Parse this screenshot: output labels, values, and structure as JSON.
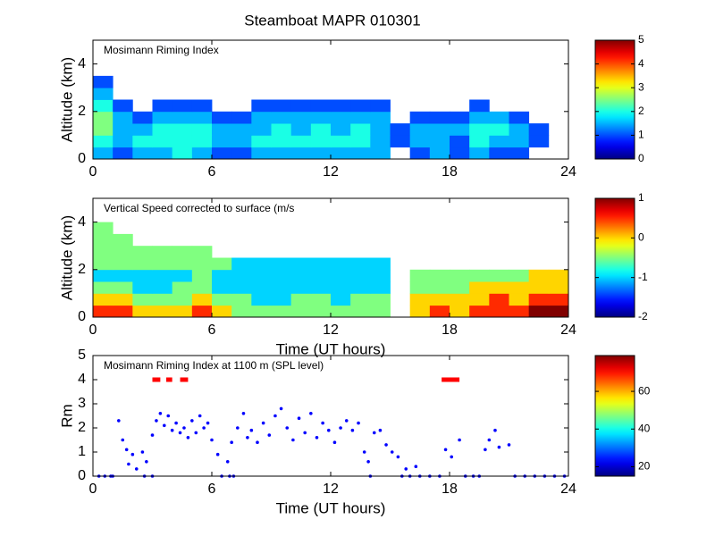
{
  "chart_data": [
    {
      "type": "heatmap",
      "title": "Steamboat MAPR 010301",
      "annotation": "Mosimann Riming Index",
      "ylabel": "Altitude (km)",
      "xbins": [
        0,
        1,
        2,
        3,
        4,
        5,
        6,
        7,
        8,
        9,
        10,
        11,
        12,
        13,
        14,
        15,
        16,
        17,
        18,
        19,
        20,
        21,
        22,
        23,
        24
      ],
      "ybins": [
        0,
        0.5,
        1,
        1.5,
        2,
        2.5,
        3,
        3.5,
        4
      ],
      "values": [
        [
          1.5,
          1,
          1.5,
          1.5,
          2,
          1.5,
          1,
          1,
          1.5,
          1.5,
          1.5,
          1.5,
          1.5,
          1.5,
          1.5,
          null,
          1,
          1.5,
          1,
          1.5,
          1,
          1,
          null,
          null
        ],
        [
          2,
          1.5,
          2,
          2,
          2,
          2,
          1.5,
          1.5,
          2,
          2,
          2,
          2,
          2,
          2,
          1.5,
          1,
          1.5,
          1.5,
          1,
          2,
          1.5,
          1.5,
          1,
          null
        ],
        [
          2.5,
          1.5,
          1.5,
          2,
          2,
          2,
          1.5,
          1.5,
          1.5,
          2,
          1.5,
          2,
          1.5,
          2,
          1.5,
          1,
          1.5,
          1.5,
          1.5,
          2,
          2,
          1.5,
          1,
          null
        ],
        [
          2.5,
          1.5,
          1,
          1.5,
          1.5,
          1.5,
          1,
          1,
          1.5,
          1.5,
          1.5,
          1.5,
          1.5,
          1.5,
          1.5,
          null,
          1,
          1,
          1,
          1.5,
          1.5,
          1,
          null,
          null
        ],
        [
          2,
          1,
          null,
          1,
          1,
          1,
          null,
          null,
          1,
          1,
          1,
          1,
          1,
          1,
          1,
          null,
          null,
          null,
          null,
          1,
          null,
          null,
          null,
          null
        ],
        [
          1.5,
          null,
          null,
          null,
          null,
          null,
          null,
          null,
          null,
          null,
          null,
          null,
          null,
          null,
          null,
          null,
          null,
          null,
          null,
          null,
          null,
          null,
          null,
          null
        ],
        [
          1,
          null,
          null,
          null,
          null,
          null,
          null,
          null,
          null,
          null,
          null,
          null,
          null,
          null,
          null,
          null,
          null,
          null,
          null,
          null,
          null,
          null,
          null,
          null
        ],
        [
          null,
          null,
          null,
          null,
          null,
          null,
          null,
          null,
          null,
          null,
          null,
          null,
          null,
          null,
          null,
          null,
          null,
          null,
          null,
          null,
          null,
          null,
          null,
          null
        ]
      ],
      "colormap": "jet",
      "clim": [
        0,
        5
      ],
      "cticks": [
        0,
        1,
        2,
        3,
        4,
        5
      ],
      "xlim": [
        0,
        24
      ],
      "xticks": [
        0,
        6,
        12,
        18,
        24
      ],
      "ylim": [
        0,
        5
      ],
      "yticks": [
        0,
        2,
        4
      ]
    },
    {
      "type": "heatmap",
      "annotation": "Vertical Speed corrected to surface (m/s",
      "ylabel": "Altitude (km)",
      "xlabel": "Time (UT hours)",
      "xbins": [
        0,
        1,
        2,
        3,
        4,
        5,
        6,
        7,
        8,
        9,
        10,
        11,
        12,
        13,
        14,
        15,
        16,
        17,
        18,
        19,
        20,
        21,
        22,
        23,
        24
      ],
      "ybins": [
        0,
        0.5,
        1,
        1.5,
        2,
        2.5,
        3,
        3.5,
        4
      ],
      "values": [
        [
          0.5,
          0.5,
          0,
          0,
          0,
          0.5,
          0,
          -0.5,
          -0.5,
          -0.5,
          -0.5,
          -0.5,
          -0.5,
          -0.5,
          -0.5,
          null,
          0,
          0.5,
          0,
          0.5,
          0.5,
          0.5,
          1,
          1
        ],
        [
          0,
          0,
          -0.5,
          -0.5,
          -0.5,
          0,
          -0.5,
          -0.5,
          -1,
          -1,
          -0.5,
          -0.5,
          -1,
          -0.5,
          -0.5,
          null,
          0,
          0,
          0,
          0,
          0.5,
          0,
          0.5,
          0.5
        ],
        [
          -0.5,
          -0.5,
          -1,
          -1,
          -0.5,
          -0.5,
          -1,
          -1,
          -1,
          -1,
          -1,
          -1,
          -1,
          -1,
          -1,
          null,
          -0.5,
          -0.5,
          -0.5,
          0,
          0,
          0,
          0,
          0
        ],
        [
          -1,
          -1,
          -1,
          -1,
          -1,
          -0.5,
          -1,
          -1,
          -1,
          -1,
          -1,
          -1,
          -1,
          -1,
          -1,
          null,
          -0.5,
          -0.5,
          -0.5,
          -0.5,
          -0.5,
          -0.5,
          0,
          0
        ],
        [
          -0.5,
          -0.5,
          -0.5,
          -0.5,
          -0.5,
          -0.5,
          -0.5,
          -1,
          -1,
          -1,
          -1,
          -1,
          -1,
          -1,
          -1,
          null,
          null,
          null,
          null,
          null,
          null,
          null,
          null,
          null
        ],
        [
          -0.5,
          -0.5,
          -0.5,
          -0.5,
          -0.5,
          -0.5,
          null,
          null,
          null,
          null,
          null,
          null,
          null,
          null,
          null,
          null,
          null,
          null,
          null,
          null,
          null,
          null,
          null,
          null
        ],
        [
          -0.5,
          -0.5,
          null,
          null,
          null,
          null,
          null,
          null,
          null,
          null,
          null,
          null,
          null,
          null,
          null,
          null,
          null,
          null,
          null,
          null,
          null,
          null,
          null,
          null
        ],
        [
          -0.5,
          null,
          null,
          null,
          null,
          null,
          null,
          null,
          null,
          null,
          null,
          null,
          null,
          null,
          null,
          null,
          null,
          null,
          null,
          null,
          null,
          null,
          null,
          null
        ]
      ],
      "colormap": "jet",
      "clim": [
        -2,
        1
      ],
      "cticks": [
        -2,
        -1,
        0,
        1
      ],
      "xlim": [
        0,
        24
      ],
      "xticks": [
        0,
        6,
        12,
        18,
        24
      ],
      "ylim": [
        0,
        5
      ],
      "yticks": [
        0,
        2,
        4
      ]
    },
    {
      "type": "scatter",
      "annotation": "Mosimann Riming Index at 1100 m (SPL level)",
      "ylabel": "Rm",
      "xlabel": "Time (UT hours)",
      "x": [
        1.3,
        1.5,
        1.7,
        1.8,
        2.0,
        2.2,
        2.5,
        2.7,
        3.0,
        3.2,
        3.4,
        3.6,
        3.8,
        4.0,
        4.2,
        4.4,
        4.6,
        4.8,
        5.0,
        5.2,
        5.4,
        5.6,
        5.8,
        6.0,
        6.3,
        6.8,
        7.0,
        7.3,
        7.6,
        7.8,
        8.0,
        8.3,
        8.6,
        8.9,
        9.2,
        9.5,
        9.8,
        10.1,
        10.4,
        10.7,
        11.0,
        11.3,
        11.6,
        11.9,
        12.2,
        12.5,
        12.8,
        13.1,
        13.4,
        13.7,
        13.9,
        14.2,
        14.5,
        14.8,
        15.1,
        15.4,
        15.8,
        16.3,
        17.8,
        18.1,
        18.5,
        19.8,
        20.0,
        20.3,
        20.5,
        21.0,
        0.3,
        0.6,
        0.9,
        1.0,
        2.6,
        3.0,
        6.5,
        6.9,
        7.1,
        14.0,
        15.6,
        16.0,
        16.5,
        17.0,
        17.5,
        18.8,
        19.2,
        19.5,
        21.3,
        21.8,
        22.3,
        22.8,
        23.3,
        23.8
      ],
      "y": [
        2.3,
        1.5,
        1.1,
        0.5,
        0.9,
        0.3,
        1.0,
        0.6,
        1.7,
        2.3,
        2.6,
        2.1,
        2.5,
        1.9,
        2.2,
        1.8,
        2.0,
        1.6,
        2.3,
        1.8,
        2.5,
        2.0,
        2.2,
        1.5,
        0.9,
        0.6,
        1.4,
        2.0,
        2.6,
        1.6,
        1.9,
        1.4,
        2.2,
        1.7,
        2.5,
        2.8,
        2.0,
        1.5,
        2.4,
        1.8,
        2.6,
        1.6,
        2.2,
        1.9,
        1.4,
        2.0,
        2.3,
        1.9,
        2.2,
        1.0,
        0.6,
        1.8,
        1.9,
        1.3,
        1.0,
        0.8,
        0.3,
        0.4,
        1.1,
        0.8,
        1.5,
        1.1,
        1.5,
        1.9,
        1.2,
        1.3,
        0,
        0,
        0,
        0,
        0,
        0,
        0,
        0,
        0,
        0,
        0,
        0,
        0,
        0,
        0,
        0,
        0,
        0,
        0,
        0,
        0,
        0,
        0,
        0
      ],
      "color": "#0000ff",
      "segments": [
        [
          3.0,
          3.4
        ],
        [
          3.7,
          4.0
        ],
        [
          4.4,
          4.8
        ],
        [
          17.6,
          18.5
        ]
      ],
      "segment_y": 4,
      "segment_color": "#ff0000",
      "colormap": "jet",
      "clim": [
        15,
        79
      ],
      "cticks": [
        20,
        40,
        60
      ],
      "xlim": [
        0,
        24
      ],
      "xticks": [
        0,
        6,
        12,
        18,
        24
      ],
      "ylim": [
        0,
        5
      ],
      "yticks": [
        0,
        1,
        2,
        3,
        4,
        5
      ]
    }
  ]
}
